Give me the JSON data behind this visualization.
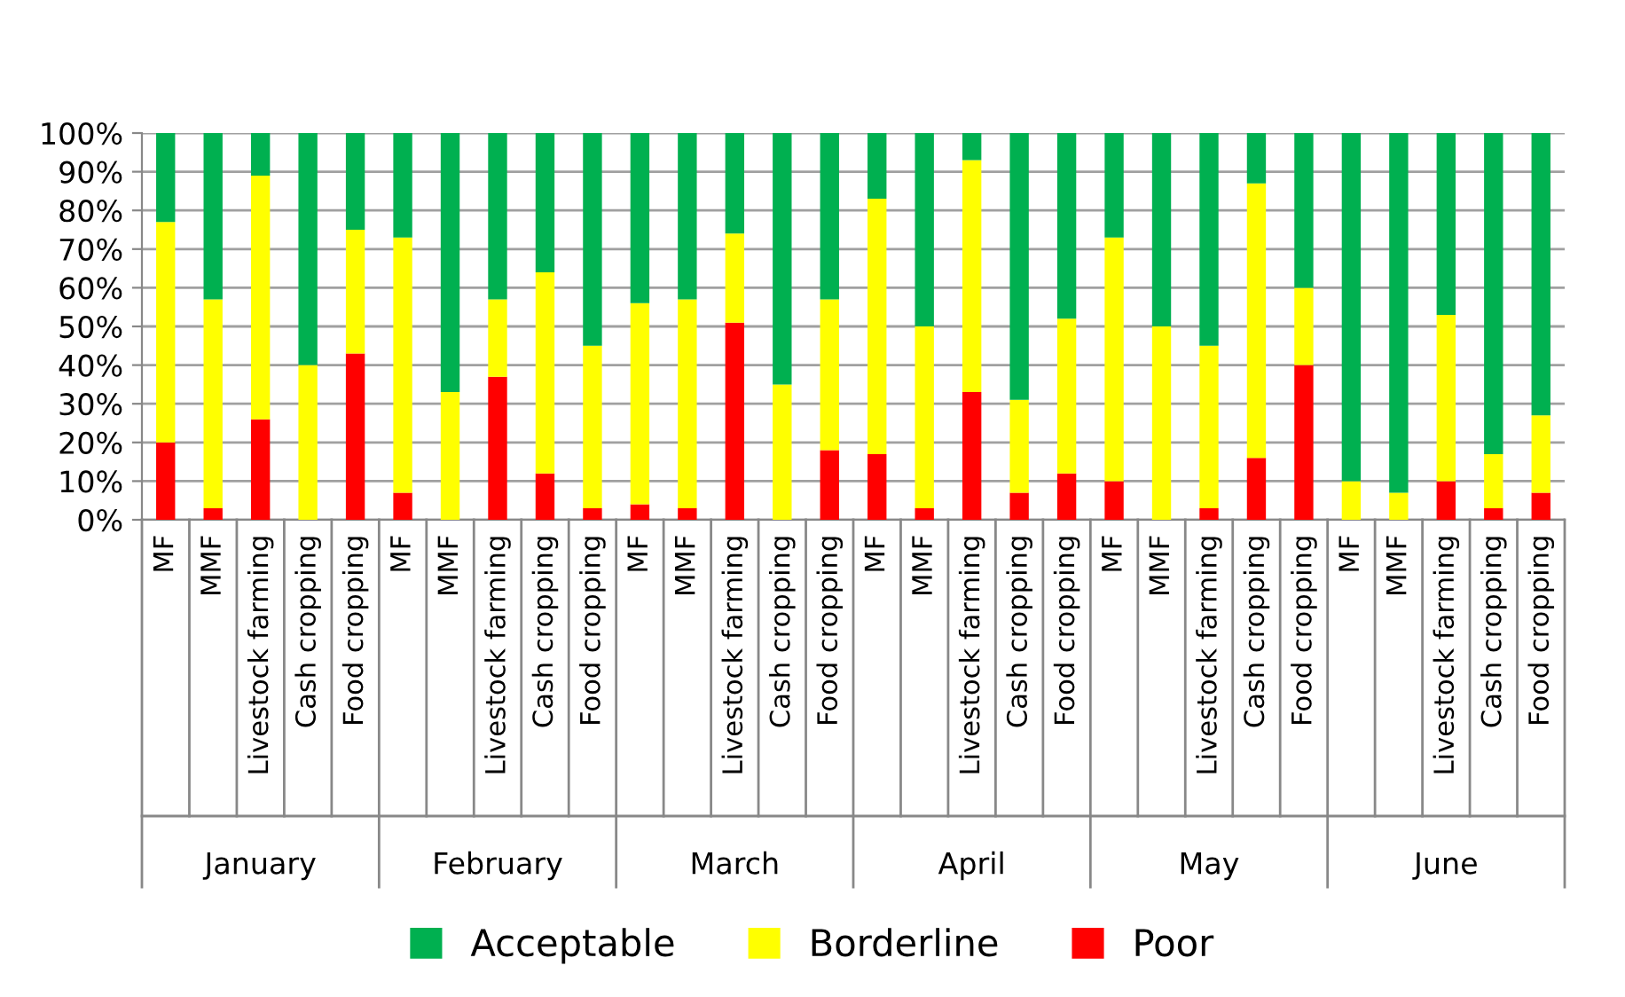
{
  "chart_data": {
    "type": "bar",
    "stacked": true,
    "categories": [
      "MF",
      "MMF",
      "Livestock farming",
      "Cash cropping",
      "Food cropping",
      "MF",
      "MMF",
      "Livestock farming",
      "Cash cropping",
      "Food cropping",
      "MF",
      "MMF",
      "Livestock farming",
      "Cash cropping",
      "Food cropping",
      "MF",
      "MMF",
      "Livestock farming",
      "Cash cropping",
      "Food cropping",
      "MF",
      "MMF",
      "Livestock farming",
      "Cash cropping",
      "Food cropping",
      "MF",
      "MMF",
      "Livestock farming",
      "Cash cropping",
      "Food cropping"
    ],
    "series": [
      {
        "name": "Poor",
        "color": "#ff0000",
        "values": [
          20,
          3,
          26,
          0,
          43,
          7,
          0,
          37,
          12,
          3,
          4,
          3,
          51,
          0,
          18,
          17,
          3,
          33,
          7,
          12,
          10,
          0,
          3,
          16,
          40,
          0,
          0,
          10,
          3,
          7
        ]
      },
      {
        "name": "Borderline",
        "color": "#ffff00",
        "values": [
          57,
          54,
          63,
          40,
          32,
          66,
          33,
          20,
          52,
          42,
          52,
          54,
          23,
          35,
          39,
          66,
          47,
          60,
          24,
          40,
          63,
          50,
          42,
          71,
          20,
          10,
          7,
          43,
          14,
          20
        ]
      },
      {
        "name": "Acceptable",
        "color": "#00b050",
        "values": [
          23,
          43,
          11,
          60,
          25,
          27,
          67,
          43,
          36,
          55,
          44,
          43,
          26,
          65,
          43,
          17,
          50,
          7,
          69,
          48,
          27,
          50,
          55,
          13,
          40,
          90,
          93,
          47,
          83,
          73
        ]
      }
    ],
    "ylim": [
      0,
      100
    ],
    "yticks": [
      {
        "value": 0,
        "label": "0%"
      },
      {
        "value": 10,
        "label": "10%"
      },
      {
        "value": 20,
        "label": "20%"
      },
      {
        "value": 30,
        "label": "30%"
      },
      {
        "value": 40,
        "label": "40%"
      },
      {
        "value": 50,
        "label": "50%"
      },
      {
        "value": 60,
        "label": "60%"
      },
      {
        "value": 70,
        "label": "70%"
      },
      {
        "value": 80,
        "label": "80%"
      },
      {
        "value": 90,
        "label": "90%"
      },
      {
        "value": 100,
        "label": "100%"
      }
    ],
    "annotations": [
      "January",
      "February",
      "March",
      "April",
      "May",
      "June"
    ],
    "grid": "y",
    "legend": "bottom"
  }
}
